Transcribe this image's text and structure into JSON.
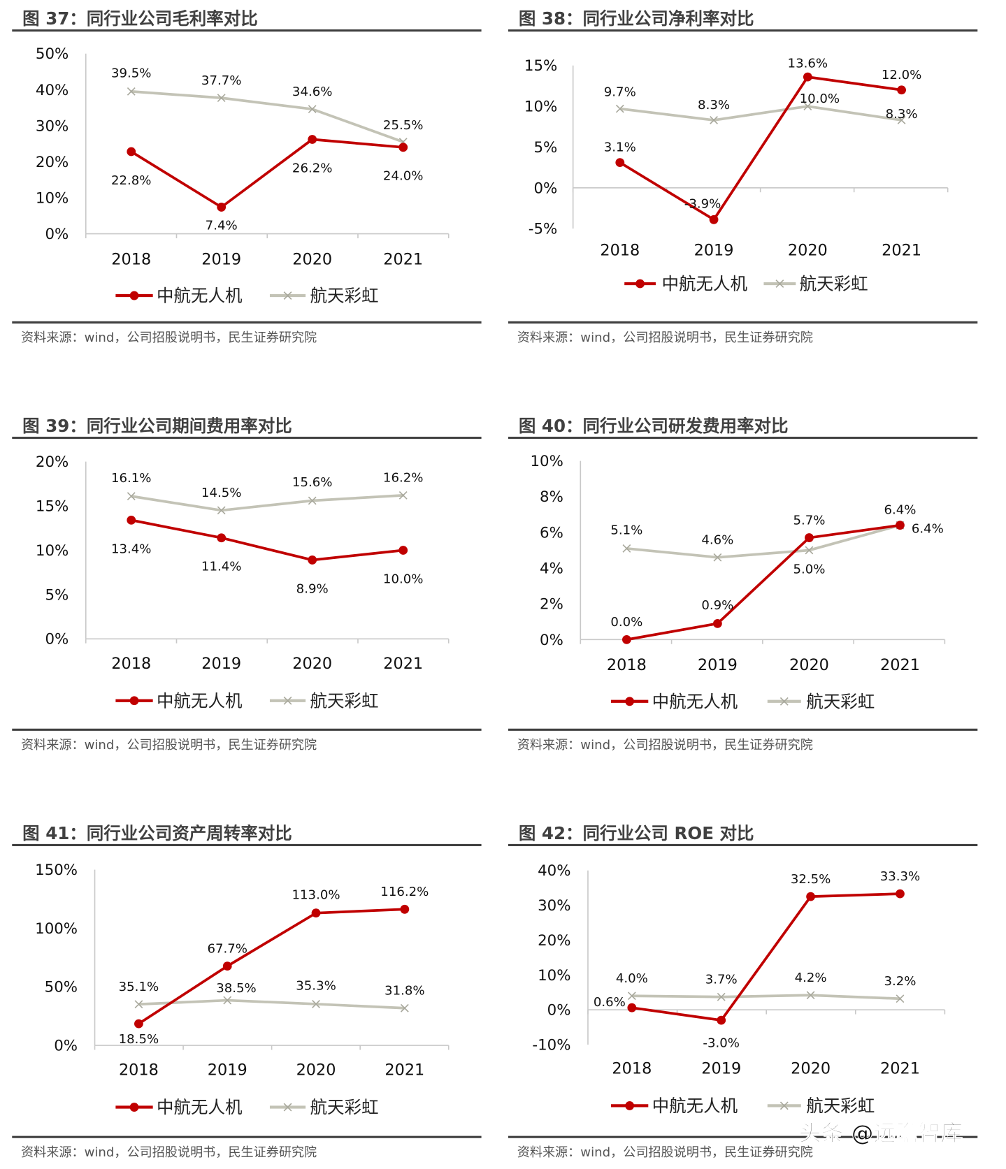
{
  "colors": {
    "zhonghang": "#c00000",
    "hangtian": "#c3c3b6",
    "rule": "#404040"
  },
  "watermark": "头条 @远瞻智库",
  "chart_data": [
    {
      "type": "line",
      "title": "图 37：同行业公司毛利率对比",
      "source": "资料来源：wind，公司招股说明书，民生证券研究院",
      "categories": [
        "2018",
        "2019",
        "2020",
        "2021"
      ],
      "ylim": [
        0,
        50
      ],
      "yticks": [
        {
          "v": 0,
          "label": "0%"
        },
        {
          "v": 10,
          "label": "10%"
        },
        {
          "v": 20,
          "label": "20%"
        },
        {
          "v": 30,
          "label": "30%"
        },
        {
          "v": 40,
          "label": "40%"
        },
        {
          "v": 50,
          "label": "50%"
        }
      ],
      "legend": "bottom",
      "series": [
        {
          "name": "中航无人机",
          "values": [
            22.8,
            7.4,
            26.2,
            24.0
          ],
          "labels": [
            "22.8%",
            "7.4%",
            "26.2%",
            "24.0%"
          ]
        },
        {
          "name": "航天彩虹",
          "values": [
            39.5,
            37.7,
            34.6,
            25.5
          ],
          "labels": [
            "39.5%",
            "37.7%",
            "34.6%",
            "25.5%"
          ]
        }
      ]
    },
    {
      "type": "line",
      "title": "图 38：同行业公司净利率对比",
      "source": "资料来源：wind，公司招股说明书，民生证券研究院",
      "categories": [
        "2018",
        "2019",
        "2020",
        "2021"
      ],
      "ylim": [
        -5,
        15
      ],
      "yticks": [
        {
          "v": -5,
          "label": "-5%"
        },
        {
          "v": 0,
          "label": "0%"
        },
        {
          "v": 5,
          "label": "5%"
        },
        {
          "v": 10,
          "label": "10%"
        },
        {
          "v": 15,
          "label": "15%"
        }
      ],
      "legend": "bottom",
      "series": [
        {
          "name": "中航无人机",
          "values": [
            3.1,
            -3.9,
            13.6,
            12.0
          ],
          "labels": [
            "3.1%",
            "-3.9%",
            "13.6%",
            "12.0%"
          ]
        },
        {
          "name": "航天彩虹",
          "values": [
            9.7,
            8.3,
            10.0,
            8.3
          ],
          "labels": [
            "9.7%",
            "8.3%",
            "10.0%",
            "8.3%"
          ]
        }
      ]
    },
    {
      "type": "line",
      "title": "图 39：同行业公司期间费用率对比",
      "source": "资料来源：wind，公司招股说明书，民生证券研究院",
      "categories": [
        "2018",
        "2019",
        "2020",
        "2021"
      ],
      "ylim": [
        0,
        20
      ],
      "yticks": [
        {
          "v": 0,
          "label": "0%"
        },
        {
          "v": 5,
          "label": "5%"
        },
        {
          "v": 10,
          "label": "10%"
        },
        {
          "v": 15,
          "label": "15%"
        },
        {
          "v": 20,
          "label": "20%"
        }
      ],
      "legend": "bottom",
      "series": [
        {
          "name": "中航无人机",
          "values": [
            13.4,
            11.4,
            8.9,
            10.0
          ],
          "labels": [
            "13.4%",
            "11.4%",
            "8.9%",
            "10.0%"
          ]
        },
        {
          "name": "航天彩虹",
          "values": [
            16.1,
            14.5,
            15.6,
            16.2
          ],
          "labels": [
            "16.1%",
            "14.5%",
            "15.6%",
            "16.2%"
          ]
        }
      ]
    },
    {
      "type": "line",
      "title": "图 40：同行业公司研发费用率对比",
      "source": "资料来源：wind，公司招股说明书，民生证券研究院",
      "categories": [
        "2018",
        "2019",
        "2020",
        "2021"
      ],
      "ylim": [
        0,
        10
      ],
      "yticks": [
        {
          "v": 0,
          "label": "0%"
        },
        {
          "v": 2,
          "label": "2%"
        },
        {
          "v": 4,
          "label": "4%"
        },
        {
          "v": 6,
          "label": "6%"
        },
        {
          "v": 8,
          "label": "8%"
        },
        {
          "v": 10,
          "label": "10%"
        }
      ],
      "legend": "bottom",
      "series": [
        {
          "name": "中航无人机",
          "values": [
            0.0,
            0.9,
            5.7,
            6.4
          ],
          "labels": [
            "0.0%",
            "0.9%",
            "5.7%",
            "6.4%"
          ]
        },
        {
          "name": "航天彩虹",
          "values": [
            5.1,
            4.6,
            5.0,
            6.4
          ],
          "labels": [
            "5.1%",
            "4.6%",
            "5.0%",
            "6.4%"
          ]
        }
      ]
    },
    {
      "type": "line",
      "title": "图 41：同行业公司资产周转率对比",
      "source": "资料来源：wind，公司招股说明书，民生证券研究院",
      "categories": [
        "2018",
        "2019",
        "2020",
        "2021"
      ],
      "ylim": [
        0,
        150
      ],
      "yticks": [
        {
          "v": 0,
          "label": "0%"
        },
        {
          "v": 50,
          "label": "50%"
        },
        {
          "v": 100,
          "label": "100%"
        },
        {
          "v": 150,
          "label": "150%"
        }
      ],
      "legend": "bottom",
      "series": [
        {
          "name": "中航无人机",
          "values": [
            18.5,
            67.7,
            113.0,
            116.2
          ],
          "labels": [
            "18.5%",
            "67.7%",
            "113.0%",
            "116.2%"
          ]
        },
        {
          "name": "航天彩虹",
          "values": [
            35.1,
            38.5,
            35.3,
            31.8
          ],
          "labels": [
            "35.1%",
            "38.5%",
            "35.3%",
            "31.8%"
          ]
        }
      ]
    },
    {
      "type": "line",
      "title": "图 42：同行业公司 ROE 对比",
      "source": "资料来源：wind，公司招股说明书，民生证券研究院",
      "categories": [
        "2018",
        "2019",
        "2020",
        "2021"
      ],
      "ylim": [
        -10,
        40
      ],
      "yticks": [
        {
          "v": -10,
          "label": "-10%"
        },
        {
          "v": 0,
          "label": "0%"
        },
        {
          "v": 10,
          "label": "10%"
        },
        {
          "v": 20,
          "label": "20%"
        },
        {
          "v": 30,
          "label": "30%"
        },
        {
          "v": 40,
          "label": "40%"
        }
      ],
      "legend": "bottom",
      "series": [
        {
          "name": "中航无人机",
          "values": [
            0.6,
            -3.0,
            32.5,
            33.3
          ],
          "labels": [
            "0.6%",
            "-3.0%",
            "32.5%",
            "33.3%"
          ]
        },
        {
          "name": "航天彩虹",
          "values": [
            4.0,
            3.7,
            4.2,
            3.2
          ],
          "labels": [
            "4.0%",
            "3.7%",
            "4.2%",
            "3.2%"
          ]
        }
      ]
    }
  ]
}
